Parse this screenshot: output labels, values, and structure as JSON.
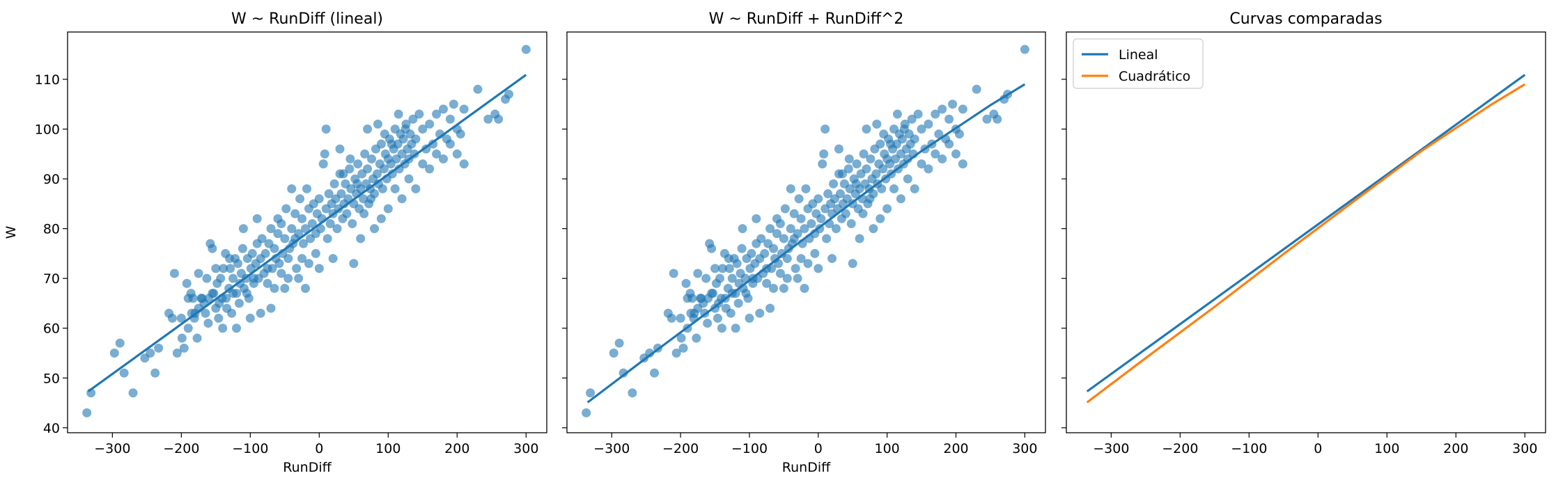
{
  "colors": {
    "linear": "#1f77b4",
    "quadratic": "#ff7f0e",
    "points": "#1f77b4"
  },
  "shared_ylabel": "W",
  "chart_data": [
    {
      "type": "scatter",
      "title": "W ~ RunDiff (lineal)",
      "xlabel": "RunDiff",
      "ylabel": "W",
      "xlim": [
        -365,
        330
      ],
      "ylim": [
        39,
        119.5
      ],
      "xticks": [
        -300,
        -200,
        -100,
        0,
        100,
        200,
        300
      ],
      "yticks": [
        40,
        50,
        60,
        70,
        80,
        90,
        100,
        110
      ],
      "grid": false,
      "fit": {
        "name": "",
        "x": [
          -335,
          300
        ],
        "y": [
          47.3,
          110.9
        ]
      },
      "points": [
        [
          -337,
          43
        ],
        [
          -331,
          47
        ],
        [
          -297,
          55
        ],
        [
          -289,
          57
        ],
        [
          -283,
          51
        ],
        [
          -270,
          47
        ],
        [
          -253,
          54
        ],
        [
          -245,
          55
        ],
        [
          -238,
          51
        ],
        [
          -233,
          56
        ],
        [
          -218,
          63
        ],
        [
          -213,
          62
        ],
        [
          -210,
          71
        ],
        [
          -206,
          55
        ],
        [
          -199,
          58
        ],
        [
          -196,
          56
        ],
        [
          -192,
          69
        ],
        [
          -190,
          60
        ],
        [
          -186,
          67
        ],
        [
          -183,
          66
        ],
        [
          -181,
          62
        ],
        [
          -177,
          58
        ],
        [
          -175,
          71
        ],
        [
          -171,
          66
        ],
        [
          -167,
          65
        ],
        [
          -163,
          70
        ],
        [
          -161,
          61
        ],
        [
          -158,
          77
        ],
        [
          -155,
          76
        ],
        [
          -153,
          67
        ],
        [
          -150,
          64
        ],
        [
          -148,
          69
        ],
        [
          -146,
          62
        ],
        [
          -143,
          70
        ],
        [
          -141,
          66
        ],
        [
          -139,
          72
        ],
        [
          -136,
          75
        ],
        [
          -134,
          64
        ],
        [
          -131,
          68
        ],
        [
          -129,
          72
        ],
        [
          -127,
          63
        ],
        [
          -125,
          70
        ],
        [
          -122,
          74
        ],
        [
          -120,
          67
        ],
        [
          -118,
          73
        ],
        [
          -116,
          65
        ],
        [
          -113,
          71
        ],
        [
          -111,
          76
        ],
        [
          -109,
          68
        ],
        [
          -106,
          70
        ],
        [
          -104,
          74
        ],
        [
          -102,
          66
        ],
        [
          -99,
          72
        ],
        [
          -97,
          75
        ],
        [
          -95,
          69
        ],
        [
          -92,
          73
        ],
        [
          -90,
          77
        ],
        [
          -88,
          70
        ],
        [
          -85,
          74
        ],
        [
          -83,
          78
        ],
        [
          -80,
          71
        ],
        [
          -78,
          75
        ],
        [
          -75,
          69
        ],
        [
          -73,
          77
        ],
        [
          -70,
          80
        ],
        [
          -68,
          72
        ],
        [
          -65,
          76
        ],
        [
          -63,
          74
        ],
        [
          -60,
          79
        ],
        [
          -58,
          73
        ],
        [
          -55,
          81
        ],
        [
          -53,
          75
        ],
        [
          -50,
          78
        ],
        [
          -48,
          84
        ],
        [
          -45,
          70
        ],
        [
          -43,
          76
        ],
        [
          -40,
          80
        ],
        [
          -38,
          77
        ],
        [
          -35,
          83
        ],
        [
          -33,
          72
        ],
        [
          -30,
          79
        ],
        [
          -28,
          86
        ],
        [
          -25,
          82
        ],
        [
          -23,
          77
        ],
        [
          -20,
          80
        ],
        [
          -18,
          88
        ],
        [
          -15,
          84
        ],
        [
          -13,
          78
        ],
        [
          -10,
          81
        ],
        [
          -8,
          85
        ],
        [
          -5,
          79
        ],
        [
          -3,
          83
        ],
        [
          0,
          86
        ],
        [
          2,
          80
        ],
        [
          4,
          82
        ],
        [
          6,
          93
        ],
        [
          8,
          95
        ],
        [
          10,
          84
        ],
        [
          12,
          78
        ],
        [
          14,
          87
        ],
        [
          16,
          81
        ],
        [
          18,
          85
        ],
        [
          20,
          83
        ],
        [
          22,
          89
        ],
        [
          24,
          86
        ],
        [
          26,
          80
        ],
        [
          28,
          84
        ],
        [
          30,
          91
        ],
        [
          32,
          87
        ],
        [
          34,
          82
        ],
        [
          36,
          85
        ],
        [
          38,
          89
        ],
        [
          40,
          83
        ],
        [
          42,
          86
        ],
        [
          44,
          92
        ],
        [
          46,
          88
        ],
        [
          48,
          81
        ],
        [
          50,
          85
        ],
        [
          52,
          90
        ],
        [
          54,
          87
        ],
        [
          56,
          93
        ],
        [
          58,
          84
        ],
        [
          60,
          88
        ],
        [
          62,
          91
        ],
        [
          64,
          86
        ],
        [
          66,
          95
        ],
        [
          68,
          89
        ],
        [
          70,
          92
        ],
        [
          72,
          85
        ],
        [
          74,
          88
        ],
        [
          76,
          94
        ],
        [
          78,
          90
        ],
        [
          80,
          87
        ],
        [
          82,
          96
        ],
        [
          84,
          91
        ],
        [
          86,
          89
        ],
        [
          88,
          93
        ],
        [
          90,
          97
        ],
        [
          92,
          88
        ],
        [
          94,
          92
        ],
        [
          96,
          95
        ],
        [
          98,
          90
        ],
        [
          100,
          94
        ],
        [
          102,
          98
        ],
        [
          104,
          93
        ],
        [
          106,
          91
        ],
        [
          108,
          96
        ],
        [
          110,
          100
        ],
        [
          112,
          94
        ],
        [
          114,
          97
        ],
        [
          116,
          92
        ],
        [
          118,
          99
        ],
        [
          120,
          95
        ],
        [
          122,
          98
        ],
        [
          124,
          93
        ],
        [
          126,
          101
        ],
        [
          128,
          96
        ],
        [
          130,
          94
        ],
        [
          132,
          99
        ],
        [
          134,
          97
        ],
        [
          136,
          102
        ],
        [
          138,
          95
        ],
        [
          140,
          98
        ],
        [
          145,
          103
        ],
        [
          150,
          100
        ],
        [
          155,
          96
        ],
        [
          160,
          101
        ],
        [
          165,
          97
        ],
        [
          170,
          103
        ],
        [
          175,
          99
        ],
        [
          180,
          104
        ],
        [
          185,
          98
        ],
        [
          190,
          102
        ],
        [
          195,
          105
        ],
        [
          200,
          95
        ],
        [
          205,
          99
        ],
        [
          210,
          93
        ],
        [
          230,
          108
        ],
        [
          245,
          102
        ],
        [
          255,
          103
        ],
        [
          260,
          102
        ],
        [
          270,
          106
        ],
        [
          275,
          107
        ],
        [
          300,
          116
        ],
        [
          -85,
          63
        ],
        [
          -60,
          82
        ],
        [
          -40,
          88
        ],
        [
          -20,
          68
        ],
        [
          10,
          100
        ],
        [
          30,
          96
        ],
        [
          50,
          73
        ],
        [
          70,
          100
        ],
        [
          90,
          82
        ],
        [
          120,
          86
        ],
        [
          140,
          88
        ],
        [
          -120,
          60
        ],
        [
          -100,
          62
        ],
        [
          -140,
          60
        ],
        [
          -160,
          66
        ],
        [
          160,
          92
        ],
        [
          180,
          94
        ],
        [
          200,
          100
        ],
        [
          -70,
          64
        ],
        [
          -50,
          68
        ],
        [
          -30,
          70
        ],
        [
          0,
          72
        ],
        [
          20,
          74
        ],
        [
          60,
          78
        ],
        [
          80,
          80
        ],
        [
          100,
          84
        ],
        [
          -110,
          80
        ],
        [
          -90,
          82
        ],
        [
          110,
          88
        ],
        [
          130,
          90
        ],
        [
          -150,
          72
        ],
        [
          -130,
          74
        ],
        [
          150,
          93
        ],
        [
          170,
          95
        ],
        [
          -180,
          63
        ],
        [
          -170,
          66
        ],
        [
          190,
          97
        ],
        [
          210,
          104
        ],
        [
          -200,
          62
        ],
        [
          -190,
          66
        ],
        [
          85,
          101
        ],
        [
          95,
          99
        ],
        [
          105,
          97
        ],
        [
          115,
          103
        ],
        [
          125,
          100
        ],
        [
          35,
          91
        ],
        [
          45,
          94
        ],
        [
          55,
          89
        ],
        [
          65,
          83
        ],
        [
          75,
          86
        ],
        [
          -5,
          75
        ],
        [
          -15,
          73
        ],
        [
          -25,
          74
        ],
        [
          -35,
          78
        ],
        [
          -45,
          74
        ],
        [
          -55,
          71
        ],
        [
          -65,
          68
        ],
        [
          -75,
          72
        ],
        [
          -95,
          70
        ],
        [
          -105,
          67
        ],
        [
          -115,
          69
        ],
        [
          -125,
          67
        ],
        [
          -135,
          66
        ],
        [
          -145,
          65
        ],
        [
          -155,
          67
        ],
        [
          -165,
          63
        ],
        [
          -175,
          64
        ],
        [
          -185,
          63
        ]
      ]
    },
    {
      "type": "scatter",
      "title": "W ~ RunDiff + RunDiff^2",
      "xlabel": "RunDiff",
      "ylabel": "",
      "xlim": [
        -365,
        330
      ],
      "ylim": [
        39,
        119.5
      ],
      "xticks": [
        -300,
        -200,
        -100,
        0,
        100,
        200,
        300
      ],
      "yticks": [
        40,
        50,
        60,
        70,
        80,
        90,
        100,
        110
      ],
      "grid": false,
      "fit": {
        "name": "",
        "x": [
          -335,
          -250,
          -150,
          -50,
          0,
          50,
          150,
          250,
          300
        ],
        "y": [
          45.1,
          54.0,
          64.3,
          74.9,
          80.1,
          85.3,
          95.6,
          104.8,
          109.0
        ]
      },
      "points_ref": 0
    },
    {
      "type": "line",
      "title": "Curvas comparadas",
      "xlabel": "",
      "ylabel": "",
      "xlim": [
        -365,
        330
      ],
      "ylim": [
        39,
        119.5
      ],
      "xticks": [
        -300,
        -200,
        -100,
        0,
        100,
        200,
        300
      ],
      "yticks": [
        40,
        50,
        60,
        70,
        80,
        90,
        100,
        110
      ],
      "grid": false,
      "legend": "top-left",
      "series": [
        {
          "name": "Lineal",
          "x": [
            -335,
            300
          ],
          "y": [
            47.3,
            110.9
          ]
        },
        {
          "name": "Cuadrático",
          "x": [
            -335,
            -250,
            -150,
            -50,
            0,
            50,
            150,
            250,
            300
          ],
          "y": [
            45.1,
            54.0,
            64.3,
            74.9,
            80.1,
            85.3,
            95.6,
            104.8,
            109.0
          ]
        }
      ]
    }
  ]
}
